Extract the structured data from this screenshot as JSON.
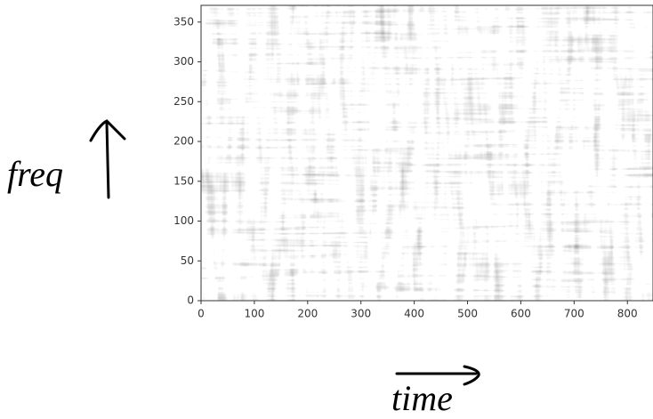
{
  "chart_data": {
    "type": "heatmap",
    "x_label": "time",
    "y_label": "freq",
    "xlim": [
      0,
      848
    ],
    "xticks": [
      0,
      100,
      200,
      300,
      400,
      500,
      600,
      700,
      800
    ],
    "ylim": [
      0,
      371
    ],
    "yticks": [
      0,
      50,
      100,
      150,
      200,
      250,
      300,
      350
    ],
    "colormap": "gray"
  }
}
